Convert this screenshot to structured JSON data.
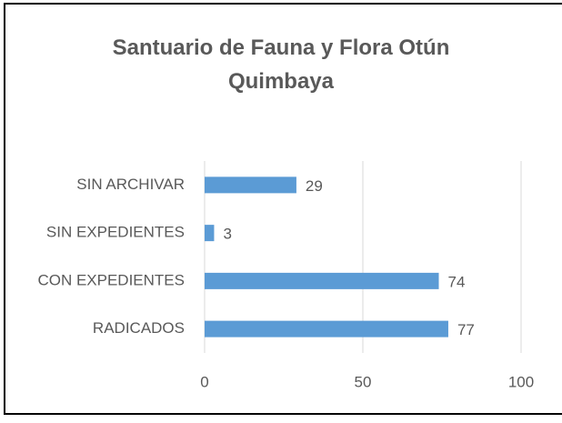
{
  "chart_data": {
    "type": "bar",
    "orientation": "horizontal",
    "title": "Santuario de Fauna y Flora Otún Quimbaya",
    "categories": [
      "SIN ARCHIVAR",
      "SIN EXPEDIENTES",
      "CON EXPEDIENTES",
      "RADICADOS"
    ],
    "values": [
      29,
      3,
      74,
      77
    ],
    "color": "#5b9bd5",
    "xlim": [
      0,
      100
    ],
    "xticks": [
      0,
      50,
      100
    ],
    "grid": true
  }
}
